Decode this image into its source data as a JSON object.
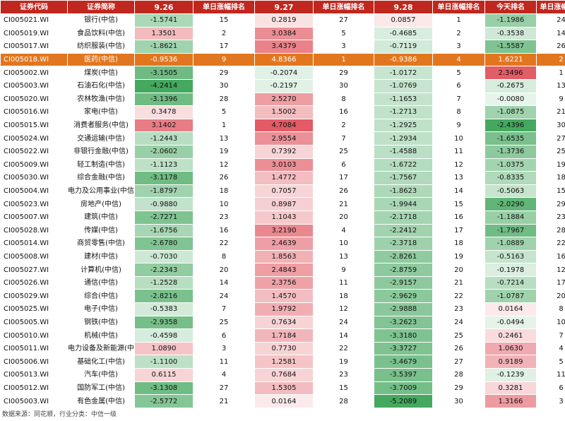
{
  "headers": [
    "证券代码",
    "证券简称",
    "9.26",
    "单日涨幅排名",
    "9.27",
    "单日涨幅排名",
    "9.28",
    "单日涨幅排名",
    "今天排名",
    "单日涨幅排名"
  ],
  "footer": "数据来源：同花顺，行业分类：中信一级",
  "colors": {
    "header": "#c0271e",
    "highlight": "#e2761f",
    "positive": "#e0525c",
    "negative": "#3fa55a"
  },
  "rows": [
    {
      "code": "CI005021.WI",
      "name": "银行(中信)",
      "v926": "-1.5741",
      "r926": "15",
      "v927": "0.2819",
      "r927": "27",
      "v928": "0.0857",
      "r928": "1",
      "vtoday": "-1.1986",
      "rtoday": "24"
    },
    {
      "code": "CI005019.WI",
      "name": "食品饮料(中信)",
      "v926": "1.3501",
      "r926": "2",
      "v927": "3.0384",
      "r927": "5",
      "v928": "-0.4685",
      "r928": "2",
      "vtoday": "-0.3538",
      "rtoday": "14"
    },
    {
      "code": "CI005017.WI",
      "name": "纺织服装(中信)",
      "v926": "-1.8621",
      "r926": "17",
      "v927": "3.4379",
      "r927": "3",
      "v928": "-0.7119",
      "r928": "3",
      "vtoday": "-1.5587",
      "rtoday": "26"
    },
    {
      "code": "CI005018.WI",
      "name": "医药(中信)",
      "v926": "-0.9536",
      "r926": "9",
      "v927": "4.8366",
      "r927": "1",
      "v928": "-0.9386",
      "r928": "4",
      "vtoday": "1.6221",
      "rtoday": "2",
      "highlight": true
    },
    {
      "code": "CI005002.WI",
      "name": "煤炭(中信)",
      "v926": "-3.1505",
      "r926": "29",
      "v927": "-0.2074",
      "r927": "29",
      "v928": "-1.0172",
      "r928": "5",
      "vtoday": "2.3496",
      "rtoday": "1"
    },
    {
      "code": "CI005003.WI",
      "name": "石油石化(中信)",
      "v926": "-4.2414",
      "r926": "30",
      "v927": "-0.2197",
      "r927": "30",
      "v928": "-1.0769",
      "r928": "6",
      "vtoday": "-0.2675",
      "rtoday": "13"
    },
    {
      "code": "CI005020.WI",
      "name": "农林牧渔(中信)",
      "v926": "-3.1396",
      "r926": "28",
      "v927": "2.5270",
      "r927": "8",
      "v928": "-1.1653",
      "r928": "7",
      "vtoday": "-0.0080",
      "rtoday": "9"
    },
    {
      "code": "CI005016.WI",
      "name": "家电(中信)",
      "v926": "0.3478",
      "r926": "5",
      "v927": "1.5002",
      "r927": "16",
      "v928": "-1.2713",
      "r928": "8",
      "vtoday": "-1.0875",
      "rtoday": "21"
    },
    {
      "code": "CI005015.WI",
      "name": "消费者服务(中信)",
      "v926": "3.1402",
      "r926": "1",
      "v927": "4.7084",
      "r927": "2",
      "v928": "-1.2925",
      "r928": "9",
      "vtoday": "-2.4396",
      "rtoday": "30"
    },
    {
      "code": "CI005024.WI",
      "name": "交通运输(中信)",
      "v926": "-1.2443",
      "r926": "13",
      "v927": "2.9554",
      "r927": "7",
      "v928": "-1.2934",
      "r928": "10",
      "vtoday": "-1.6535",
      "rtoday": "27"
    },
    {
      "code": "CI005022.WI",
      "name": "非银行金融(中信)",
      "v926": "-2.0602",
      "r926": "19",
      "v927": "0.7392",
      "r927": "25",
      "v928": "-1.4588",
      "r928": "11",
      "vtoday": "-1.3736",
      "rtoday": "25"
    },
    {
      "code": "CI005009.WI",
      "name": "轻工制造(中信)",
      "v926": "-1.1123",
      "r926": "12",
      "v927": "3.0103",
      "r927": "6",
      "v928": "-1.6722",
      "r928": "12",
      "vtoday": "-1.0375",
      "rtoday": "19"
    },
    {
      "code": "CI005030.WI",
      "name": "综合金融(中信)",
      "v926": "-3.1178",
      "r926": "26",
      "v927": "1.4772",
      "r927": "17",
      "v928": "-1.7567",
      "r928": "13",
      "vtoday": "-0.8335",
      "rtoday": "18"
    },
    {
      "code": "CI005004.WI",
      "name": "电力及公用事业(中信)",
      "v926": "-1.8797",
      "r926": "18",
      "v927": "0.7057",
      "r927": "26",
      "v928": "-1.8623",
      "r928": "14",
      "vtoday": "-0.5063",
      "rtoday": "15"
    },
    {
      "code": "CI005023.WI",
      "name": "房地产(中信)",
      "v926": "-0.9880",
      "r926": "10",
      "v927": "0.8987",
      "r927": "21",
      "v928": "-1.9944",
      "r928": "15",
      "vtoday": "-2.0290",
      "rtoday": "29"
    },
    {
      "code": "CI005007.WI",
      "name": "建筑(中信)",
      "v926": "-2.7271",
      "r926": "23",
      "v927": "1.1043",
      "r927": "20",
      "v928": "-2.1718",
      "r928": "16",
      "vtoday": "-1.1884",
      "rtoday": "23"
    },
    {
      "code": "CI005028.WI",
      "name": "传媒(中信)",
      "v926": "-1.6756",
      "r926": "16",
      "v927": "3.2190",
      "r927": "4",
      "v928": "-2.2412",
      "r928": "17",
      "vtoday": "-1.7967",
      "rtoday": "28"
    },
    {
      "code": "CI005014.WI",
      "name": "商贸零售(中信)",
      "v926": "-2.6780",
      "r926": "22",
      "v927": "2.4639",
      "r927": "10",
      "v928": "-2.3718",
      "r928": "18",
      "vtoday": "-1.0889",
      "rtoday": "22"
    },
    {
      "code": "CI005008.WI",
      "name": "建材(中信)",
      "v926": "-0.7030",
      "r926": "8",
      "v927": "1.8563",
      "r927": "13",
      "v928": "-2.8261",
      "r928": "19",
      "vtoday": "-0.5163",
      "rtoday": "16"
    },
    {
      "code": "CI005027.WI",
      "name": "计算机(中信)",
      "v926": "-2.2343",
      "r926": "20",
      "v927": "2.4843",
      "r927": "9",
      "v928": "-2.8759",
      "r928": "20",
      "vtoday": "-0.1978",
      "rtoday": "12"
    },
    {
      "code": "CI005026.WI",
      "name": "通信(中信)",
      "v926": "-1.2528",
      "r926": "14",
      "v927": "2.3756",
      "r927": "11",
      "v928": "-2.9157",
      "r928": "21",
      "vtoday": "-0.7214",
      "rtoday": "17"
    },
    {
      "code": "CI005029.WI",
      "name": "综合(中信)",
      "v926": "-2.8216",
      "r926": "24",
      "v927": "1.4570",
      "r927": "18",
      "v928": "-2.9629",
      "r928": "22",
      "vtoday": "-1.0787",
      "rtoday": "20"
    },
    {
      "code": "CI005025.WI",
      "name": "电子(中信)",
      "v926": "-0.5383",
      "r926": "7",
      "v927": "1.9792",
      "r927": "12",
      "v928": "-2.9888",
      "r928": "23",
      "vtoday": "0.0164",
      "rtoday": "8"
    },
    {
      "code": "CI005005.WI",
      "name": "钢铁(中信)",
      "v926": "-2.9358",
      "r926": "25",
      "v927": "0.7634",
      "r927": "24",
      "v928": "-3.2623",
      "r928": "24",
      "vtoday": "-0.0494",
      "rtoday": "10"
    },
    {
      "code": "CI005010.WI",
      "name": "机械(中信)",
      "v926": "-0.4598",
      "r926": "6",
      "v927": "1.7184",
      "r927": "14",
      "v928": "-3.3180",
      "r928": "25",
      "vtoday": "0.2461",
      "rtoday": "7"
    },
    {
      "code": "CI005011.WI",
      "name": "电力设备及新能源(中信)",
      "v926": "1.0890",
      "r926": "3",
      "v927": "0.7730",
      "r927": "22",
      "v928": "-3.3727",
      "r928": "26",
      "vtoday": "1.0630",
      "rtoday": "4"
    },
    {
      "code": "CI005006.WI",
      "name": "基础化工(中信)",
      "v926": "-1.1100",
      "r926": "11",
      "v927": "1.2581",
      "r927": "19",
      "v928": "-3.4679",
      "r928": "27",
      "vtoday": "0.9189",
      "rtoday": "5"
    },
    {
      "code": "CI005013.WI",
      "name": "汽车(中信)",
      "v926": "0.6115",
      "r926": "4",
      "v927": "0.7684",
      "r927": "23",
      "v928": "-3.5397",
      "r928": "28",
      "vtoday": "-0.1239",
      "rtoday": "11"
    },
    {
      "code": "CI005012.WI",
      "name": "国防军工(中信)",
      "v926": "-3.1308",
      "r926": "27",
      "v927": "1.5305",
      "r927": "15",
      "v928": "-3.7009",
      "r928": "29",
      "vtoday": "0.3281",
      "rtoday": "6"
    },
    {
      "code": "CI005003.WI",
      "name": "有色金属(中信)",
      "v926": "-2.5772",
      "r926": "21",
      "v927": "0.0164",
      "r927": "28",
      "v928": "-5.2089",
      "r928": "30",
      "vtoday": "1.3166",
      "rtoday": "3"
    }
  ]
}
